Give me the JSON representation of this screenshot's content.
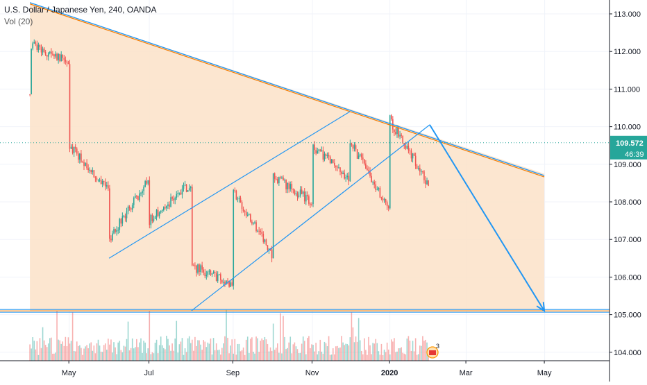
{
  "legend": {
    "symbol_line": "U.S. Dollar / Japanese Yen, 240, OANDA",
    "volume_line": "Vol (20)"
  },
  "price_axis": {
    "ticks": [
      "113.000",
      "112.000",
      "111.000",
      "110.000",
      "109.000",
      "108.000",
      "107.000",
      "106.000",
      "105.000",
      "104.000"
    ]
  },
  "current_price": {
    "value": "109.572",
    "countdown": "46:39"
  },
  "events_badge": "3",
  "colors": {
    "bull": "#26a69a",
    "bear": "#ef5350",
    "triangle_fill": "#fce2c8",
    "trendline": "#2196f3",
    "orange_line": "#f57c00",
    "price_label_bg": "#26a69a",
    "grid": "#f0f3fa"
  },
  "chart_data": {
    "type": "candlestick",
    "title": "U.S. Dollar / Japanese Yen, 240, OANDA",
    "indicator": "Vol (20)",
    "x_ticks": [
      "May",
      "Jul",
      "Sep",
      "Nov",
      "2020",
      "Mar",
      "May"
    ],
    "y_ticks": [
      113,
      112,
      111,
      110,
      109,
      108,
      107,
      106,
      105,
      104
    ],
    "ylim": [
      103.6,
      113.3
    ],
    "last_price": 109.572,
    "price_path": [
      {
        "date": "Apr 2019",
        "price": 110.9
      },
      {
        "date": "Apr 2019",
        "price": 111.8
      },
      {
        "date": "Apr 2019",
        "price": 112.2
      },
      {
        "date": "May 2019",
        "price": 111.7
      },
      {
        "date": "May 2019",
        "price": 109.5
      },
      {
        "date": "Jun 2019",
        "price": 108.3
      },
      {
        "date": "Jun 2019",
        "price": 107.0
      },
      {
        "date": "Jul 2019",
        "price": 108.6
      },
      {
        "date": "Jul 2019",
        "price": 107.5
      },
      {
        "date": "Aug 2019",
        "price": 108.5
      },
      {
        "date": "Aug 2019",
        "price": 105.2
      },
      {
        "date": "Aug 2019",
        "price": 106.3
      },
      {
        "date": "Sep 2019",
        "price": 105.8
      },
      {
        "date": "Sep 2019",
        "price": 108.3
      },
      {
        "date": "Oct 2019",
        "price": 106.6
      },
      {
        "date": "Oct 2019",
        "price": 108.7
      },
      {
        "date": "Nov 2019",
        "price": 108.0
      },
      {
        "date": "Nov 2019",
        "price": 109.5
      },
      {
        "date": "Dec 2019",
        "price": 108.6
      },
      {
        "date": "Dec 2019",
        "price": 109.6
      },
      {
        "date": "Jan 2020",
        "price": 107.8
      },
      {
        "date": "Jan 2020",
        "price": 110.2
      },
      {
        "date": "Feb 2020",
        "price": 108.4
      },
      {
        "date": "Feb 2020",
        "price": 109.57
      }
    ],
    "drawings": {
      "triangle_fill": [
        {
          "date": "Apr 2019",
          "price": 113.3
        },
        {
          "date": "May 2020",
          "price": 108.75
        },
        {
          "date": "May 2020",
          "price": 105.1
        },
        {
          "date": "Apr 2019",
          "price": 105.1
        }
      ],
      "upper_trendline": {
        "start": {
          "date": "Apr 2019",
          "price": 113.3
        },
        "end": {
          "date": "May 2020",
          "price": 108.7
        }
      },
      "support_line_price": 105.1,
      "channel_upper": {
        "start": {
          "date": "Jun 2019",
          "price": 106.5
        },
        "end": {
          "date": "Dec 2019",
          "price": 110.4
        }
      },
      "channel_lower": {
        "start": {
          "date": "Aug 2019",
          "price": 105.1
        },
        "end": {
          "date": "Feb 2020",
          "price": 110.05
        }
      },
      "projection_arrow": {
        "start": {
          "date": "Feb 2020",
          "price": 110.05
        },
        "end": {
          "date": "May 2020",
          "price": 105.1
        }
      }
    }
  }
}
